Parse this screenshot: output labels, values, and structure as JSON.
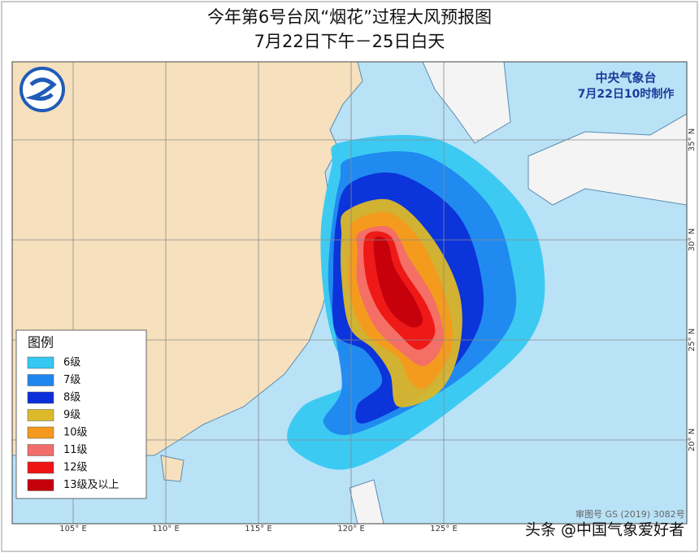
{
  "title": {
    "line1": "今年第6号台风“烟花”过程大风预报图",
    "line2": "7月22日下午－25日白天"
  },
  "agency": {
    "name": "中央气象台",
    "time": "7月22日10时制作"
  },
  "legend": {
    "title": "图例",
    "items": [
      {
        "label": "6级",
        "color": "#35c8f2"
      },
      {
        "label": "7级",
        "color": "#1f86ef"
      },
      {
        "label": "8级",
        "color": "#0b2fd8"
      },
      {
        "label": "9级",
        "color": "#dcb92a"
      },
      {
        "label": "10级",
        "color": "#f59a1e"
      },
      {
        "label": "11级",
        "color": "#f36d6a"
      },
      {
        "label": "12级",
        "color": "#ee1414"
      },
      {
        "label": "13级及以上",
        "color": "#c4000c"
      }
    ]
  },
  "axes": {
    "longitudes": [
      {
        "value": 105,
        "label": "105° E"
      },
      {
        "value": 110,
        "label": "110° E"
      },
      {
        "value": 115,
        "label": "115° E"
      },
      {
        "value": 120,
        "label": "120° E"
      },
      {
        "value": 125,
        "label": "125° E"
      }
    ],
    "latitudes": [
      {
        "value": 35,
        "label": "35° N"
      },
      {
        "value": 30,
        "label": "30° N"
      },
      {
        "value": 25,
        "label": "25° N"
      },
      {
        "value": 20,
        "label": "20° N"
      }
    ]
  },
  "footer": {
    "approval": "审图号 GS (2019) 3082号",
    "watermark": "头条 @中国气象爱好者"
  }
}
